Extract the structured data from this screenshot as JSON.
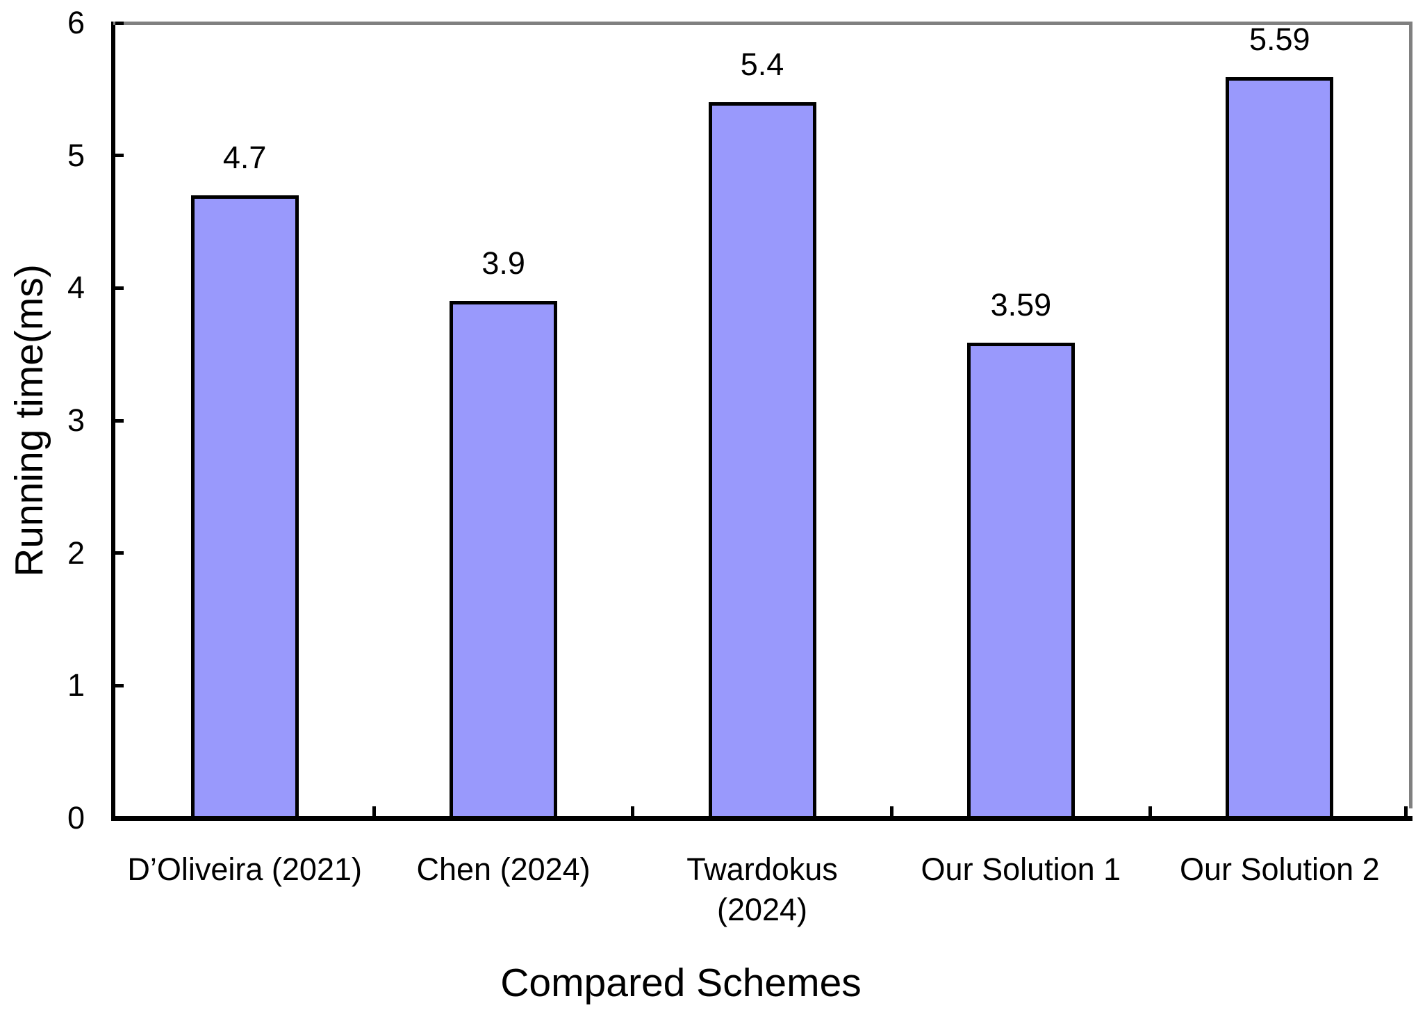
{
  "chart_data": {
    "type": "bar",
    "categories": [
      "D’Oliveira (2021)",
      "Chen (2024)",
      "Twardokus\n(2024)",
      "Our Solution 1",
      "Our Solution 2"
    ],
    "values": [
      4.7,
      3.9,
      5.4,
      3.59,
      5.59
    ],
    "data_labels": [
      "4.7",
      "3.9",
      "5.4",
      "3.59",
      "5.59"
    ],
    "title": "",
    "xlabel": "Compared Schemes",
    "ylabel": "Running time(ms)",
    "ylim": [
      0,
      6
    ],
    "yticks": [
      0,
      1,
      2,
      3,
      4,
      5,
      6
    ],
    "grid": false,
    "legend": "none",
    "colors": {
      "bar_fill": "#9999FC",
      "bar_border": "#000000",
      "axis": "#000000",
      "plot_border": "#808080",
      "text": "#000000",
      "background": "#FFFFFF"
    }
  }
}
